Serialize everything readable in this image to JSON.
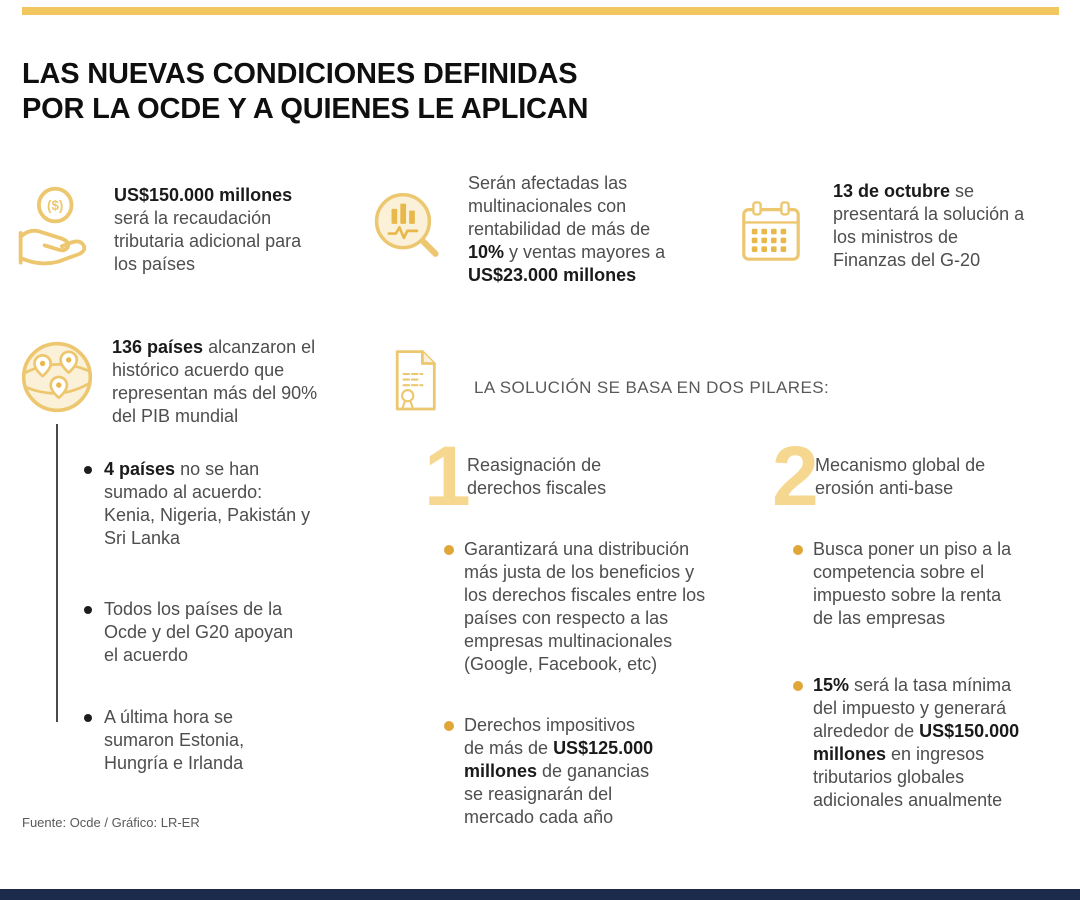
{
  "colors": {
    "accent": "#F3C75F",
    "accent_soft": "#F6D78F",
    "icon_stroke": "#EDC76F",
    "icon_fill": "#FBF1D8",
    "icon_accent": "#E8B84B",
    "bullet_gold": "#DFA63A",
    "bullet_black": "#1D1D1D",
    "text_dark": "#1A1A1A",
    "text_body": "#4E4E4E",
    "heading_gray": "#58595B",
    "footer_bar": "#1C2B4B"
  },
  "title": {
    "line1": "LAS NUEVAS CONDICIONES DEFINIDAS",
    "line2": "POR LA OCDE Y A QUIENES LE APLICAN"
  },
  "facts": [
    {
      "icon": "hand-coin-icon",
      "segments": [
        {
          "t": "US$150.000 millones",
          "b": true
        },
        {
          "t": " será la recaudación tributaria adicional para los países",
          "b": false
        }
      ]
    },
    {
      "icon": "magnifier-chart-icon",
      "segments": [
        {
          "t": "Serán afectadas las multinacionales con rentabilidad de más de ",
          "b": false
        },
        {
          "t": "10%",
          "b": true
        },
        {
          "t": " y ventas mayores a ",
          "b": false
        },
        {
          "t": "US$23.000 millones",
          "b": true
        }
      ]
    },
    {
      "icon": "calendar-icon",
      "segments": [
        {
          "t": "13 de octubre",
          "b": true
        },
        {
          "t": " se presentará la solución a los ministros de Finanzas del G-20",
          "b": false
        }
      ]
    }
  ],
  "countries": {
    "icon": "globe-pins-icon",
    "segments": [
      {
        "t": "136 países",
        "b": true
      },
      {
        "t": " alcanzaron el histórico acuerdo que representan más del 90% del PIB mundial",
        "b": false
      }
    ],
    "sub_items": [
      {
        "segments": [
          {
            "t": "4 países",
            "b": true
          },
          {
            "t": " no se han sumado al acuerdo: Kenia, Nigeria, Pakistán y Sri Lanka",
            "b": false
          }
        ]
      },
      {
        "segments": [
          {
            "t": "Todos los países de la Ocde y del G20 apoyan el acuerdo",
            "b": false
          }
        ]
      },
      {
        "segments": [
          {
            "t": "A última hora se sumaron Estonia, Hungría e Irlanda",
            "b": false
          }
        ]
      }
    ]
  },
  "solution": {
    "icon": "document-icon",
    "heading": "LA SOLUCIÓN SE BASA EN DOS PILARES:",
    "pillars": [
      {
        "number": "1",
        "title": "Reasignación de derechos fiscales",
        "bullets": [
          {
            "segments": [
              {
                "t": "Garantizará una distribución más justa de los beneficios y los derechos fiscales entre los países con respecto a las empresas multinacionales (Google, Facebook, etc)",
                "b": false
              }
            ]
          },
          {
            "segments": [
              {
                "t": "Derechos impositivos de más de ",
                "b": false
              },
              {
                "t": "US$125.000 millones",
                "b": true
              },
              {
                "t": " de ganancias se reasignarán del mercado cada año",
                "b": false
              }
            ]
          }
        ]
      },
      {
        "number": "2",
        "title": "Mecanismo global de erosión anti-base",
        "bullets": [
          {
            "segments": [
              {
                "t": "Busca poner un piso a la competencia sobre el impuesto sobre la renta de las empresas",
                "b": false
              }
            ]
          },
          {
            "segments": [
              {
                "t": "15%",
                "b": true
              },
              {
                "t": " será la tasa mínima del impuesto y generará alrededor de ",
                "b": false
              },
              {
                "t": "US$150.000 millones",
                "b": true
              },
              {
                "t": " en ingresos tributarios globales adicionales anualmente",
                "b": false
              }
            ]
          }
        ]
      }
    ]
  },
  "footer": {
    "credit": "Fuente: Ocde / Gráfico: LR-ER"
  }
}
